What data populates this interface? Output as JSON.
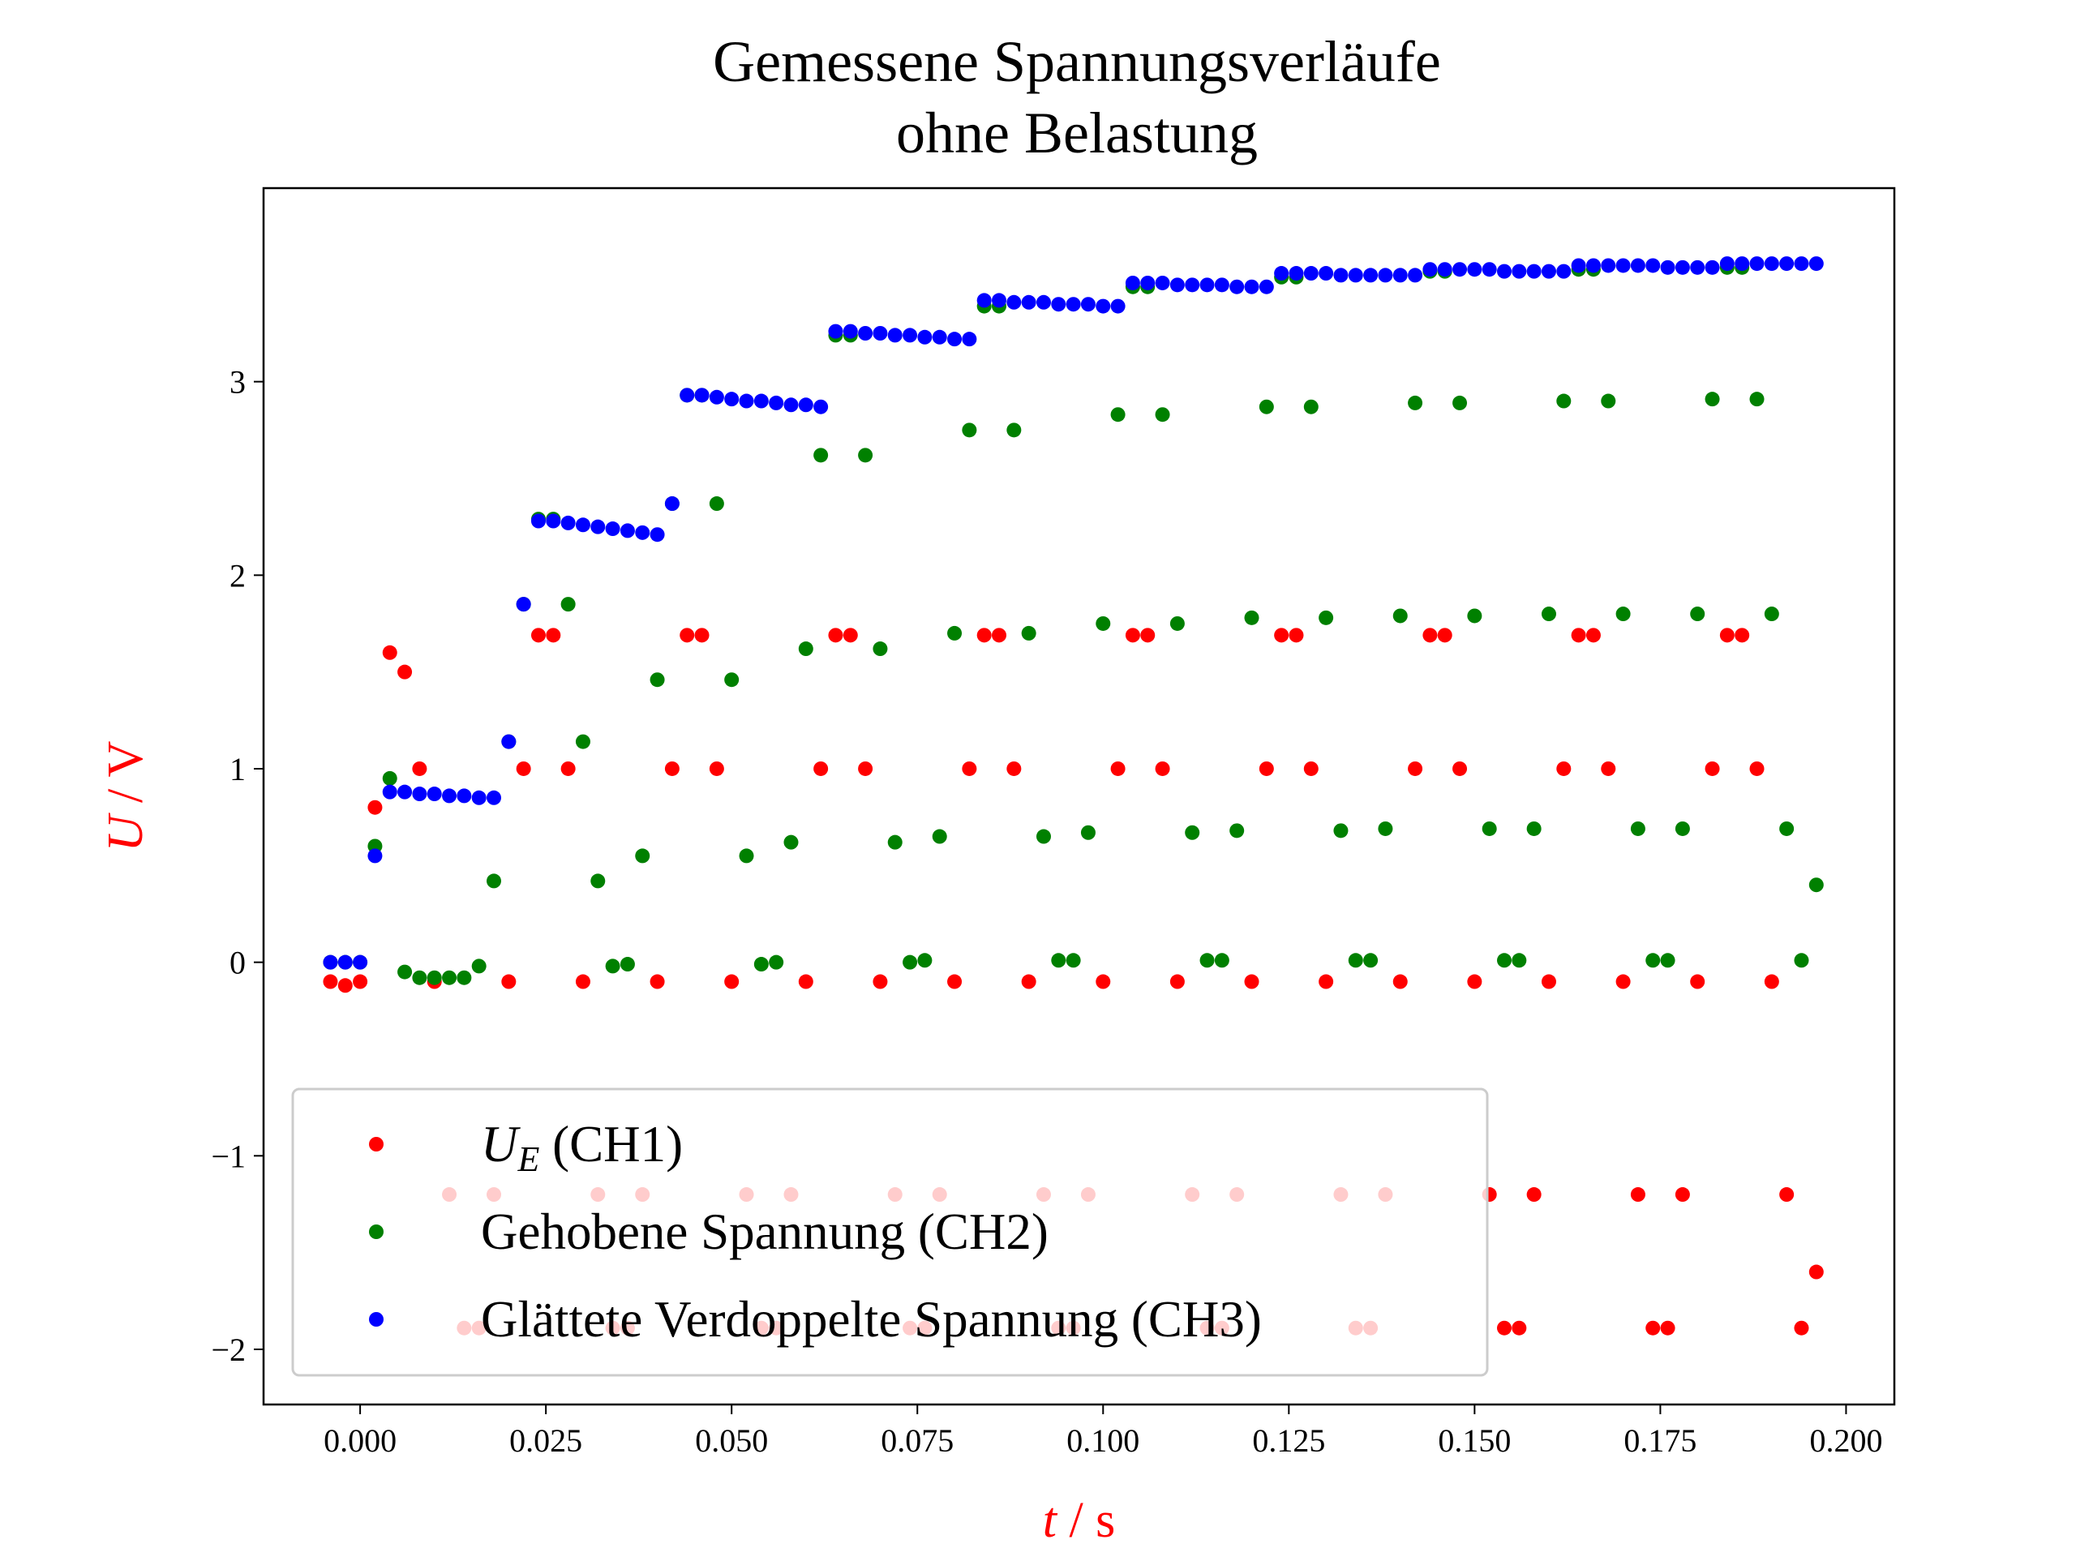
{
  "chart_data": {
    "type": "scatter",
    "title": [
      "Gemessene Spannungsverläufe",
      "ohne Belastung"
    ],
    "x_label": "t / s",
    "y_label": "U / V",
    "axis_label_color": "#ff0000",
    "xlim": [
      -0.013,
      0.2065
    ],
    "ylim": [
      -2.285,
      4.0
    ],
    "xticks": [
      {
        "value": 0,
        "label": "0.000"
      },
      {
        "value": 0.025,
        "label": "0.025"
      },
      {
        "value": 0.05,
        "label": "0.050"
      },
      {
        "value": 0.075,
        "label": "0.075"
      },
      {
        "value": 0.1,
        "label": "0.100"
      },
      {
        "value": 0.125,
        "label": "0.125"
      },
      {
        "value": 0.15,
        "label": "0.150"
      },
      {
        "value": 0.175,
        "label": "0.175"
      },
      {
        "value": 0.2,
        "label": "0.200"
      }
    ],
    "yticks": [
      {
        "value": -2,
        "label": "−2"
      },
      {
        "value": -1,
        "label": "−1"
      },
      0,
      1,
      2,
      3
    ],
    "grid": false,
    "legend": "lower left",
    "x": [
      -0.004,
      -0.002,
      0.0,
      0.002,
      0.004,
      0.006,
      0.008,
      0.01,
      0.012,
      0.014,
      0.016,
      0.018,
      0.02,
      0.022,
      0.024,
      0.026,
      0.028,
      0.03,
      0.032,
      0.034,
      0.036,
      0.038,
      0.04,
      0.042,
      0.044,
      0.046,
      0.048,
      0.05,
      0.052,
      0.054,
      0.056,
      0.058,
      0.06,
      0.062,
      0.064,
      0.066,
      0.068,
      0.07,
      0.072,
      0.074,
      0.076,
      0.078,
      0.08,
      0.082,
      0.084,
      0.086,
      0.088,
      0.09,
      0.092,
      0.094,
      0.096,
      0.098,
      0.1,
      0.102,
      0.104,
      0.106,
      0.108,
      0.11,
      0.112,
      0.114,
      0.116,
      0.118,
      0.12,
      0.122,
      0.124,
      0.126,
      0.128,
      0.13,
      0.132,
      0.134,
      0.136,
      0.138,
      0.14,
      0.142,
      0.144,
      0.146,
      0.148,
      0.15,
      0.152,
      0.154,
      0.156,
      0.158,
      0.16,
      0.162,
      0.164,
      0.166,
      0.168,
      0.17,
      0.172,
      0.174,
      0.176,
      0.178,
      0.18,
      0.182,
      0.184,
      0.186,
      0.188,
      0.19,
      0.192,
      0.194,
      0.196
    ],
    "series": [
      {
        "name": "UE (CH1)",
        "color": "#ff0000",
        "values": [
          -0.1,
          -0.12,
          -0.1,
          0.8,
          1.6,
          1.5,
          1.0,
          -0.1,
          -1.2,
          -1.89,
          -1.89,
          -1.2,
          -0.1,
          1.0,
          1.69,
          1.69,
          1.0,
          -0.1,
          -1.2,
          -1.89,
          -1.89,
          -1.2,
          -0.1,
          1.0,
          1.69,
          1.69,
          1.0,
          -0.1,
          -1.2,
          -1.89,
          -1.89,
          -1.2,
          -0.1,
          1.0,
          1.69,
          1.69,
          1.0,
          -0.1,
          -1.2,
          -1.89,
          -1.89,
          -1.2,
          -0.1,
          1.0,
          1.69,
          1.69,
          1.0,
          -0.1,
          -1.2,
          -1.89,
          -1.89,
          -1.2,
          -0.1,
          1.0,
          1.69,
          1.69,
          1.0,
          -0.1,
          -1.2,
          -1.89,
          -1.89,
          -1.2,
          -0.1,
          1.0,
          1.69,
          1.69,
          1.0,
          -0.1,
          -1.2,
          -1.89,
          -1.89,
          -1.2,
          -0.1,
          1.0,
          1.69,
          1.69,
          1.0,
          -0.1,
          -1.2,
          -1.89,
          -1.89,
          -1.2,
          -0.1,
          1.0,
          1.69,
          1.69,
          1.0,
          -0.1,
          -1.2,
          -1.89,
          -1.89,
          -1.2,
          -0.1,
          1.0,
          1.69,
          1.69,
          1.0,
          -0.1,
          -1.2,
          -1.89,
          -1.6
        ]
      },
      {
        "name": "Gehobene Spannung (CH2)",
        "color": "#008000",
        "values": [
          0,
          0,
          0,
          0.6,
          0.95,
          -0.05,
          -0.08,
          -0.08,
          -0.08,
          -0.08,
          -0.02,
          0.42,
          1.14,
          1.85,
          2.29,
          2.29,
          1.85,
          1.14,
          0.42,
          -0.02,
          -0.01,
          0.55,
          1.46,
          2.37,
          2.93,
          2.93,
          2.37,
          1.46,
          0.55,
          -0.01,
          0.0,
          0.62,
          1.62,
          2.62,
          3.24,
          3.24,
          2.62,
          1.62,
          0.62,
          0.0,
          0.01,
          0.65,
          1.7,
          2.75,
          3.39,
          3.39,
          2.75,
          1.7,
          0.65,
          0.01,
          0.01,
          0.67,
          1.75,
          2.83,
          3.49,
          3.49,
          2.83,
          1.75,
          0.67,
          0.01,
          0.01,
          0.68,
          1.78,
          2.87,
          3.54,
          3.54,
          2.87,
          1.78,
          0.68,
          0.01,
          0.01,
          0.69,
          1.79,
          2.89,
          3.57,
          3.57,
          2.89,
          1.79,
          0.69,
          0.01,
          0.01,
          0.69,
          1.8,
          2.9,
          3.58,
          3.58,
          2.9,
          1.8,
          0.69,
          0.01,
          0.01,
          0.69,
          1.8,
          2.91,
          3.59,
          3.59,
          2.91,
          1.8,
          0.69,
          0.01,
          0.4
        ]
      },
      {
        "name": "Glättete Verdoppelte Spannung (CH3)",
        "color": "#0000ff",
        "values": [
          0,
          0,
          0,
          0.55,
          0.88,
          0.88,
          0.87,
          0.87,
          0.86,
          0.86,
          0.85,
          0.85,
          1.14,
          1.85,
          2.28,
          2.28,
          2.27,
          2.26,
          2.25,
          2.24,
          2.23,
          2.22,
          2.21,
          2.37,
          2.93,
          2.93,
          2.92,
          2.91,
          2.9,
          2.9,
          2.89,
          2.88,
          2.88,
          2.87,
          3.26,
          3.26,
          3.25,
          3.25,
          3.24,
          3.24,
          3.23,
          3.23,
          3.22,
          3.22,
          3.42,
          3.42,
          3.41,
          3.41,
          3.41,
          3.4,
          3.4,
          3.4,
          3.39,
          3.39,
          3.51,
          3.51,
          3.51,
          3.5,
          3.5,
          3.5,
          3.5,
          3.49,
          3.49,
          3.49,
          3.56,
          3.56,
          3.56,
          3.56,
          3.55,
          3.55,
          3.55,
          3.55,
          3.55,
          3.55,
          3.58,
          3.58,
          3.58,
          3.58,
          3.58,
          3.57,
          3.57,
          3.57,
          3.57,
          3.57,
          3.6,
          3.6,
          3.6,
          3.6,
          3.6,
          3.6,
          3.59,
          3.59,
          3.59,
          3.59,
          3.61,
          3.61,
          3.61,
          3.61,
          3.61,
          3.61,
          3.61
        ]
      }
    ]
  }
}
